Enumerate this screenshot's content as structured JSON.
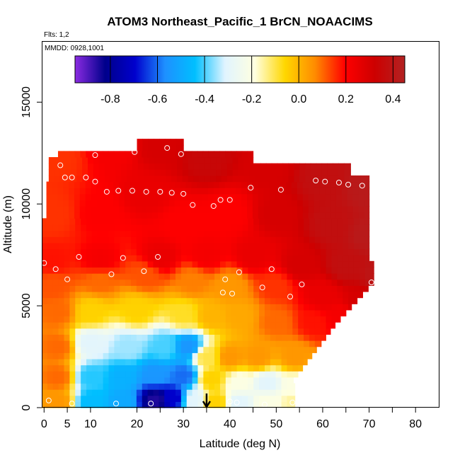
{
  "chart_data": {
    "type": "heatmap",
    "title": "ATOM3 Northeast_Pacific_1 BrCN_NOAACIMS",
    "flights_label": "Flts: 1,2",
    "dates_label": "MMDD: 0928,1001",
    "xlabel": "Latitude (deg N)",
    "ylabel": "Altitude (m)",
    "xlim": [
      -0.5,
      85
    ],
    "ylim": [
      0,
      18000
    ],
    "x_ticks": [
      0,
      5,
      10,
      20,
      30,
      40,
      50,
      60,
      70,
      80
    ],
    "y_ticks": [
      0,
      5000,
      10000,
      15000
    ],
    "colorbar": {
      "range": [
        -0.95,
        0.45
      ],
      "ticks": [
        -0.8,
        -0.6,
        -0.4,
        -0.2,
        0.0,
        0.2,
        0.4
      ],
      "tick_labels": [
        "-0.8",
        "-0.6",
        "-0.4",
        "-0.2",
        "0.0",
        "0.2",
        "0.4"
      ],
      "colors": [
        "#8B2BE2",
        "#00008B",
        "#0000CD",
        "#1E90FF",
        "#00BFFF",
        "#E0F4FF",
        "#FFFFE0",
        "#FFD700",
        "#FF8C00",
        "#FF0000",
        "#CD0000",
        "#B22222"
      ]
    },
    "arrow_latitude": 35,
    "grid": false,
    "field_points": [
      {
        "lat": 3,
        "alt": 12300,
        "value": 0.15
      },
      {
        "lat": 15,
        "alt": 12800,
        "value": 0.22
      },
      {
        "lat": 25,
        "alt": 12800,
        "value": 0.3
      },
      {
        "lat": 35,
        "alt": 12200,
        "value": 0.35
      },
      {
        "lat": 48,
        "alt": 11800,
        "value": 0.3
      },
      {
        "lat": 60,
        "alt": 11200,
        "value": 0.38
      },
      {
        "lat": 70,
        "alt": 10800,
        "value": 0.42
      },
      {
        "lat": 2,
        "alt": 9500,
        "value": 0.15
      },
      {
        "lat": 12,
        "alt": 9500,
        "value": 0.2
      },
      {
        "lat": 22,
        "alt": 10500,
        "value": 0.25
      },
      {
        "lat": 30,
        "alt": 9000,
        "value": 0.2
      },
      {
        "lat": 40,
        "alt": 9500,
        "value": 0.2
      },
      {
        "lat": 50,
        "alt": 9500,
        "value": 0.3
      },
      {
        "lat": 62,
        "alt": 9000,
        "value": 0.38
      },
      {
        "lat": 70,
        "alt": 8500,
        "value": 0.42
      },
      {
        "lat": 2,
        "alt": 7200,
        "value": 0.18
      },
      {
        "lat": 12,
        "alt": 7200,
        "value": 0.22
      },
      {
        "lat": 25,
        "alt": 7400,
        "value": 0.25
      },
      {
        "lat": 35,
        "alt": 7500,
        "value": 0.22
      },
      {
        "lat": 45,
        "alt": 7500,
        "value": 0.25
      },
      {
        "lat": 55,
        "alt": 7000,
        "value": 0.3
      },
      {
        "lat": 65,
        "alt": 7000,
        "value": 0.38
      },
      {
        "lat": 72,
        "alt": 6500,
        "value": 0.4
      },
      {
        "lat": 2,
        "alt": 6000,
        "value": 0.12
      },
      {
        "lat": 12,
        "alt": 6300,
        "value": 0.1
      },
      {
        "lat": 22,
        "alt": 6500,
        "value": 0.12
      },
      {
        "lat": 32,
        "alt": 6200,
        "value": 0.08
      },
      {
        "lat": 40,
        "alt": 6000,
        "value": 0.05
      },
      {
        "lat": 50,
        "alt": 6000,
        "value": 0.15
      },
      {
        "lat": 60,
        "alt": 5500,
        "value": 0.25
      },
      {
        "lat": 68,
        "alt": 5200,
        "value": 0.3
      },
      {
        "lat": 3,
        "alt": 4700,
        "value": 0.1
      },
      {
        "lat": 10,
        "alt": 4700,
        "value": -0.05
      },
      {
        "lat": 20,
        "alt": 4800,
        "value": -0.05
      },
      {
        "lat": 30,
        "alt": 4600,
        "value": -0.08
      },
      {
        "lat": 36,
        "alt": 4500,
        "value": 0.0
      },
      {
        "lat": 42,
        "alt": 4500,
        "value": 0.02
      },
      {
        "lat": 50,
        "alt": 4200,
        "value": 0.1
      },
      {
        "lat": 58,
        "alt": 4200,
        "value": 0.18
      },
      {
        "lat": 64,
        "alt": 4500,
        "value": 0.22
      },
      {
        "lat": 3,
        "alt": 3000,
        "value": 0.1
      },
      {
        "lat": 10,
        "alt": 3200,
        "value": -0.3
      },
      {
        "lat": 18,
        "alt": 3000,
        "value": -0.35
      },
      {
        "lat": 26,
        "alt": 3000,
        "value": -0.4
      },
      {
        "lat": 31,
        "alt": 3000,
        "value": -0.55
      },
      {
        "lat": 35,
        "alt": 2500,
        "value": -0.1
      },
      {
        "lat": 40,
        "alt": 2500,
        "value": 0.05
      },
      {
        "lat": 46,
        "alt": 2500,
        "value": 0.05
      },
      {
        "lat": 54,
        "alt": 2500,
        "value": 0.05
      },
      {
        "lat": 3,
        "alt": 1500,
        "value": 0.1
      },
      {
        "lat": 10,
        "alt": 1500,
        "value": -0.42
      },
      {
        "lat": 17,
        "alt": 1500,
        "value": -0.48
      },
      {
        "lat": 24,
        "alt": 1600,
        "value": -0.55
      },
      {
        "lat": 30,
        "alt": 1600,
        "value": -0.6
      },
      {
        "lat": 36,
        "alt": 1400,
        "value": -0.05
      },
      {
        "lat": 42,
        "alt": 1200,
        "value": -0.2
      },
      {
        "lat": 48,
        "alt": 1200,
        "value": -0.3
      },
      {
        "lat": 54,
        "alt": 1100,
        "value": -0.2
      },
      {
        "lat": 3,
        "alt": 300,
        "value": 0.05
      },
      {
        "lat": 10,
        "alt": 300,
        "value": -0.45
      },
      {
        "lat": 17,
        "alt": 300,
        "value": -0.5
      },
      {
        "lat": 24,
        "alt": 400,
        "value": -0.85
      },
      {
        "lat": 28,
        "alt": 500,
        "value": -0.7
      },
      {
        "lat": 32,
        "alt": 400,
        "value": -0.3
      },
      {
        "lat": 37,
        "alt": 300,
        "value": -0.05
      },
      {
        "lat": 42,
        "alt": 300,
        "value": -0.3
      },
      {
        "lat": 48,
        "alt": 300,
        "value": -0.2
      },
      {
        "lat": 54,
        "alt": 300,
        "value": -0.15
      }
    ],
    "observations": [
      {
        "lat": 3.5,
        "alt": 11900
      },
      {
        "lat": 4.5,
        "alt": 11300
      },
      {
        "lat": 6,
        "alt": 11300
      },
      {
        "lat": 9,
        "alt": 11300
      },
      {
        "lat": 11,
        "alt": 12400
      },
      {
        "lat": 11,
        "alt": 11100
      },
      {
        "lat": 13.5,
        "alt": 10600
      },
      {
        "lat": 16,
        "alt": 10650
      },
      {
        "lat": 19,
        "alt": 10650
      },
      {
        "lat": 19.5,
        "alt": 12550
      },
      {
        "lat": 22,
        "alt": 10600
      },
      {
        "lat": 25,
        "alt": 10600
      },
      {
        "lat": 26.5,
        "alt": 12750
      },
      {
        "lat": 27.5,
        "alt": 10550
      },
      {
        "lat": 29.5,
        "alt": 12450
      },
      {
        "lat": 30,
        "alt": 10500
      },
      {
        "lat": 32,
        "alt": 9950
      },
      {
        "lat": 36.5,
        "alt": 9900
      },
      {
        "lat": 38,
        "alt": 10200
      },
      {
        "lat": 40,
        "alt": 10200
      },
      {
        "lat": 44.5,
        "alt": 10800
      },
      {
        "lat": 51,
        "alt": 10700
      },
      {
        "lat": 58.5,
        "alt": 11150
      },
      {
        "lat": 60.5,
        "alt": 11100
      },
      {
        "lat": 63.5,
        "alt": 11050
      },
      {
        "lat": 65.5,
        "alt": 10950
      },
      {
        "lat": 68.5,
        "alt": 10900
      },
      {
        "lat": 0,
        "alt": 7100
      },
      {
        "lat": 7.5,
        "alt": 7400
      },
      {
        "lat": 17,
        "alt": 7350
      },
      {
        "lat": 24.5,
        "alt": 7400
      },
      {
        "lat": 2.5,
        "alt": 6800
      },
      {
        "lat": 5,
        "alt": 6300
      },
      {
        "lat": 14.5,
        "alt": 6550
      },
      {
        "lat": 21.5,
        "alt": 6700
      },
      {
        "lat": 39,
        "alt": 6300
      },
      {
        "lat": 42,
        "alt": 6650
      },
      {
        "lat": 49,
        "alt": 6800
      },
      {
        "lat": 70.5,
        "alt": 6150
      },
      {
        "lat": 55.5,
        "alt": 6050
      },
      {
        "lat": 47,
        "alt": 5900
      },
      {
        "lat": 38.5,
        "alt": 5650
      },
      {
        "lat": 40.5,
        "alt": 5600
      },
      {
        "lat": 53,
        "alt": 5450
      },
      {
        "lat": 1,
        "alt": 350
      },
      {
        "lat": 6,
        "alt": 200
      },
      {
        "lat": 15.5,
        "alt": 200
      },
      {
        "lat": 23,
        "alt": 200
      },
      {
        "lat": 40,
        "alt": 300
      },
      {
        "lat": 41.5,
        "alt": 250
      },
      {
        "lat": 47.5,
        "alt": 150
      },
      {
        "lat": 53.5,
        "alt": 250
      }
    ]
  }
}
